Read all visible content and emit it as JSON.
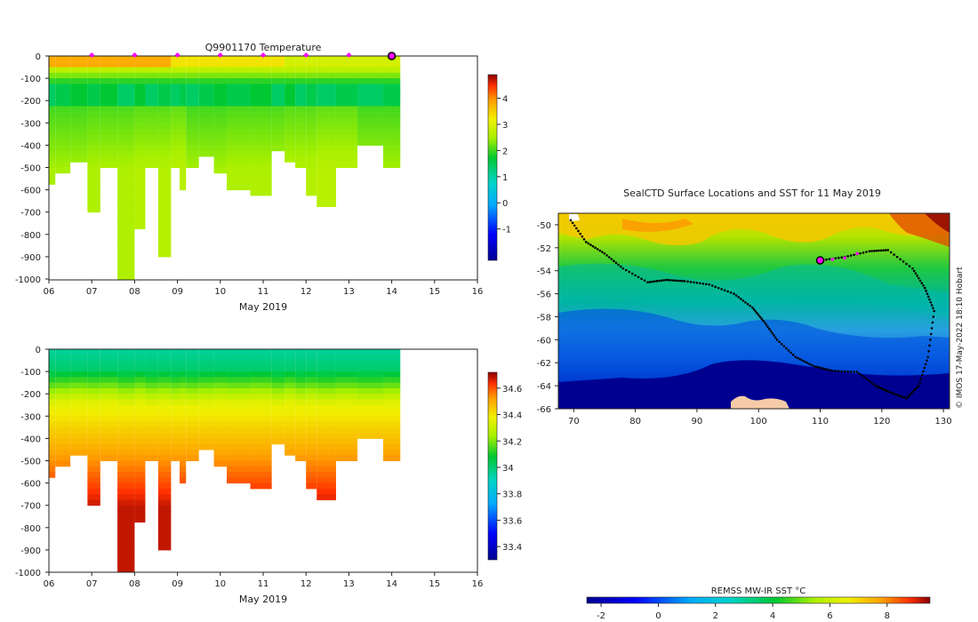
{
  "chart_data": [
    {
      "type": "heatmap",
      "id": "temperature-section",
      "title": "Q9901170  Temperature",
      "xlabel": "May 2019",
      "ylabel": "",
      "x_ticks": [
        "06",
        "07",
        "08",
        "09",
        "10",
        "11",
        "12",
        "13",
        "14",
        "15",
        "16"
      ],
      "xlim_day": [
        6,
        16.1
      ],
      "y_ticks": [
        "0",
        "-100",
        "-200",
        "-300",
        "-400",
        "-500",
        "-600",
        "-700",
        "-800",
        "-900",
        "-1000"
      ],
      "ylim": [
        -1000,
        0
      ],
      "colorbar": {
        "ticks": [
          "-1",
          "0",
          "1",
          "2",
          "3",
          "4"
        ],
        "range": [
          -2.2,
          4.9
        ]
      },
      "profile_markers_day": [
        7.0,
        8.0,
        9.0,
        10.0,
        11.0,
        12.0,
        13.0
      ],
      "current_profile_day": 14.0,
      "profiles": [
        {
          "x0": 6.0,
          "x1": 6.15,
          "max_depth": 560
        },
        {
          "x0": 6.15,
          "x1": 6.5,
          "max_depth": 510
        },
        {
          "x0": 6.5,
          "x1": 6.9,
          "max_depth": 465
        },
        {
          "x0": 6.9,
          "x1": 7.2,
          "max_depth": 690
        },
        {
          "x0": 7.2,
          "x1": 7.6,
          "max_depth": 500
        },
        {
          "x0": 7.6,
          "x1": 8.0,
          "max_depth": 1000
        },
        {
          "x0": 8.0,
          "x1": 8.25,
          "max_depth": 760
        },
        {
          "x0": 8.25,
          "x1": 8.55,
          "max_depth": 500
        },
        {
          "x0": 8.55,
          "x1": 8.85,
          "max_depth": 900
        },
        {
          "x0": 8.85,
          "x1": 9.05,
          "max_depth": 490
        },
        {
          "x0": 9.05,
          "x1": 9.2,
          "max_depth": 580
        },
        {
          "x0": 9.2,
          "x1": 9.5,
          "max_depth": 500
        },
        {
          "x0": 9.5,
          "x1": 9.85,
          "max_depth": 450
        },
        {
          "x0": 9.85,
          "x1": 10.15,
          "max_depth": 525
        },
        {
          "x0": 10.15,
          "x1": 10.7,
          "max_depth": 600
        },
        {
          "x0": 10.7,
          "x1": 11.2,
          "max_depth": 625
        },
        {
          "x0": 11.2,
          "x1": 11.5,
          "max_depth": 405
        },
        {
          "x0": 11.5,
          "x1": 11.75,
          "max_depth": 475
        },
        {
          "x0": 11.75,
          "x1": 12.0,
          "max_depth": 500
        },
        {
          "x0": 12.0,
          "x1": 12.25,
          "max_depth": 620
        },
        {
          "x0": 12.25,
          "x1": 12.7,
          "max_depth": 655
        },
        {
          "x0": 12.7,
          "x1": 13.2,
          "max_depth": 500
        },
        {
          "x0": 13.2,
          "x1": 13.8,
          "max_depth": 400
        },
        {
          "x0": 13.8,
          "x1": 14.2,
          "max_depth": 500
        }
      ]
    },
    {
      "type": "heatmap",
      "id": "salinity-section",
      "title": "",
      "xlabel": "May 2019",
      "x_ticks": [
        "06",
        "07",
        "08",
        "09",
        "10",
        "11",
        "12",
        "13",
        "14",
        "15",
        "16"
      ],
      "y_ticks": [
        "0",
        "-100",
        "-200",
        "-300",
        "-400",
        "-500",
        "-600",
        "-700",
        "-800",
        "-900",
        "-1000"
      ],
      "ylim": [
        -1000,
        0
      ],
      "colorbar": {
        "ticks": [
          "33.4",
          "33.6",
          "33.8",
          "34",
          "34.2",
          "34.4",
          "34.6"
        ],
        "range": [
          33.3,
          34.72
        ]
      }
    },
    {
      "type": "heatmap",
      "id": "sst-map",
      "title": "SealCTD Surface Locations and SST for 11 May 2019",
      "x_ticks": [
        "70",
        "80",
        "90",
        "100",
        "110",
        "120",
        "130"
      ],
      "xlim": [
        67.5,
        131
      ],
      "y_ticks": [
        "-50",
        "-52",
        "-54",
        "-56",
        "-58",
        "-60",
        "-62",
        "-64",
        "-66"
      ],
      "ylim": [
        -66,
        -49
      ],
      "colorbar": {
        "label": "REMSS MW-IR SST °C",
        "ticks": [
          "-2",
          "0",
          "2",
          "4",
          "6",
          "8"
        ],
        "range": [
          -2.5,
          9.5
        ]
      },
      "track": [
        [
          69.5,
          -49.6
        ],
        [
          72,
          -51.5
        ],
        [
          75,
          -52.5
        ],
        [
          78,
          -53.8
        ],
        [
          82,
          -55
        ],
        [
          85,
          -54.8
        ],
        [
          88,
          -54.9
        ],
        [
          92,
          -55.2
        ],
        [
          96,
          -56
        ],
        [
          99,
          -57.2
        ],
        [
          101,
          -58.5
        ],
        [
          103,
          -60
        ],
        [
          106,
          -61.5
        ],
        [
          109,
          -62.3
        ],
        [
          112,
          -62.7
        ],
        [
          116,
          -62.8
        ],
        [
          119,
          -64
        ],
        [
          121,
          -64.5
        ],
        [
          124,
          -65.1
        ],
        [
          126,
          -64
        ],
        [
          127.5,
          -61.5
        ],
        [
          128.5,
          -57.5
        ],
        [
          127,
          -55.5
        ],
        [
          125,
          -53.8
        ],
        [
          121,
          -52.2
        ],
        [
          118,
          -52.3
        ],
        [
          114,
          -52.8
        ],
        [
          110,
          -53.1
        ]
      ],
      "current_location": [
        110,
        -53.1
      ],
      "recent_track": [
        [
          110.5,
          -53.1
        ],
        [
          112,
          -53.0
        ],
        [
          114,
          -52.9
        ],
        [
          116,
          -52.5
        ]
      ]
    }
  ],
  "stamp": "© IMOS 17-May-2022 18:10 Hobart",
  "colors": {
    "marker": "#ff00ff",
    "track": "#000000",
    "land": "#f5cba7"
  }
}
